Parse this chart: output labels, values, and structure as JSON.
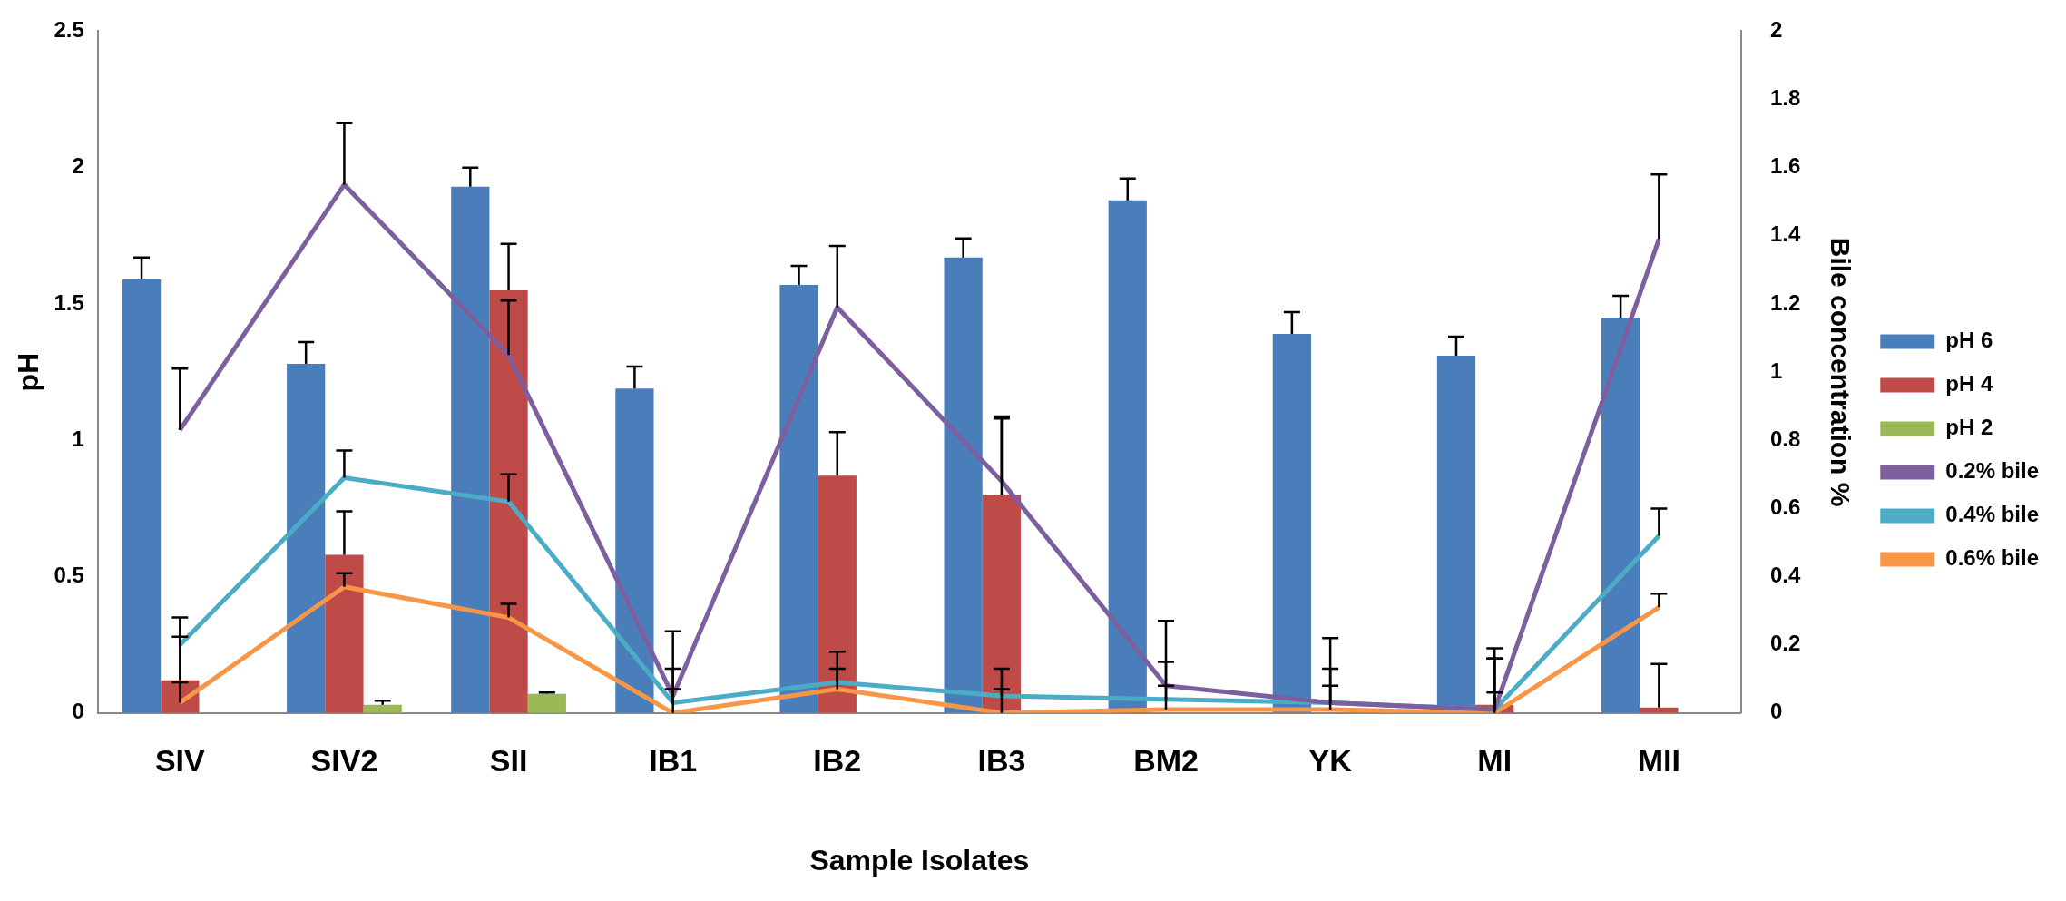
{
  "chart_data": {
    "type": "bar",
    "xlabel": "Sample Isolates",
    "ylabel": "pH",
    "y2label": "Bile concentration %",
    "categories": [
      "SIV",
      "SIV2",
      "SII",
      "IB1",
      "IB2",
      "IB3",
      "BM2",
      "YK",
      "MI",
      "MII"
    ],
    "series": [
      {
        "name": "pH 6",
        "color": "#4a7ebb",
        "values": [
          1.59,
          1.28,
          1.93,
          1.19,
          1.57,
          1.67,
          1.88,
          1.39,
          1.31,
          1.45
        ],
        "errors": [
          [
            1.59,
            1.67
          ],
          [
            1.28,
            1.36
          ],
          [
            1.93,
            2.0
          ],
          [
            1.19,
            1.27
          ],
          [
            1.57,
            1.64
          ],
          [
            1.67,
            1.74
          ],
          [
            1.88,
            1.96
          ],
          [
            1.39,
            1.47
          ],
          [
            1.31,
            1.38
          ],
          [
            1.45,
            1.53
          ]
        ]
      },
      {
        "name": "pH 4",
        "color": "#be4b48",
        "values": [
          0.12,
          0.58,
          1.55,
          0,
          0.87,
          0.8,
          0,
          0,
          0.03,
          0.02
        ],
        "errors": [
          [
            0.12,
            0.28
          ],
          [
            0.58,
            0.74
          ],
          [
            1.55,
            1.72
          ],
          null,
          [
            0.87,
            1.03
          ],
          [
            0.8,
            1.08
          ],
          null,
          null,
          [
            0.03,
            0.2
          ],
          [
            0.02,
            0.18
          ]
        ]
      },
      {
        "name": "pH 2",
        "color": "#98b954",
        "values": [
          0,
          0.03,
          0.07,
          0,
          0,
          0,
          0,
          0,
          0,
          0
        ],
        "errors": [
          null,
          [
            0.03,
            0.045
          ],
          [
            0.07,
            0.075
          ],
          null,
          null,
          null,
          null,
          null,
          null,
          null
        ]
      },
      {
        "name": "0.2% bile",
        "type": "line",
        "axis": "y2",
        "color": "#7d5fa0",
        "values": [
          0.83,
          1.55,
          1.05,
          0.05,
          1.19,
          0.68,
          0.08,
          0.03,
          0.01,
          1.39
        ],
        "errors": [
          [
            0.83,
            1.01
          ],
          [
            1.55,
            1.73
          ],
          [
            1.05,
            1.21
          ],
          [
            0.05,
            0.24
          ],
          [
            1.19,
            1.37
          ],
          [
            0.68,
            0.87
          ],
          [
            0.08,
            0.27
          ],
          [
            0.03,
            0.22
          ],
          [
            0.01,
            0.19
          ],
          [
            1.39,
            1.58
          ]
        ]
      },
      {
        "name": "0.4% bile",
        "type": "line",
        "axis": "y2",
        "color": "#4bacc6",
        "values": [
          0.2,
          0.69,
          0.62,
          0.03,
          0.09,
          0.05,
          0.04,
          0.03,
          0.01,
          0.52
        ],
        "errors": [
          [
            0.2,
            0.28
          ],
          [
            0.69,
            0.77
          ],
          [
            0.62,
            0.7
          ],
          [
            0.03,
            0.13
          ],
          [
            0.09,
            0.18
          ],
          [
            0.05,
            0.13
          ],
          [
            0.04,
            0.15
          ],
          [
            0.03,
            0.13
          ],
          [
            0.01,
            0.16
          ],
          [
            0.52,
            0.6
          ]
        ]
      },
      {
        "name": "0.6% bile",
        "type": "line",
        "axis": "y2",
        "color": "#f79646",
        "values": [
          0.03,
          0.37,
          0.28,
          0,
          0.07,
          0,
          0.01,
          0.01,
          0,
          0.31
        ],
        "errors": [
          [
            0.03,
            0.09
          ],
          [
            0.37,
            0.41
          ],
          [
            0.28,
            0.32
          ],
          [
            0,
            0.07
          ],
          [
            0.07,
            0.13
          ],
          [
            0,
            0.07
          ],
          [
            0.01,
            0.08
          ],
          [
            0.01,
            0.08
          ],
          [
            0,
            0.06
          ],
          [
            0.31,
            0.35
          ]
        ]
      }
    ],
    "ylim": [
      0,
      2.5
    ],
    "yticks": [
      0,
      0.5,
      1,
      1.5,
      2,
      2.5
    ],
    "y2lim": [
      0,
      2
    ],
    "y2ticks": [
      0,
      0.2,
      0.4,
      0.6,
      0.8,
      1,
      1.2,
      1.4,
      1.6,
      1.8,
      2
    ],
    "grid": false,
    "legend": "right",
    "marker": "none"
  }
}
